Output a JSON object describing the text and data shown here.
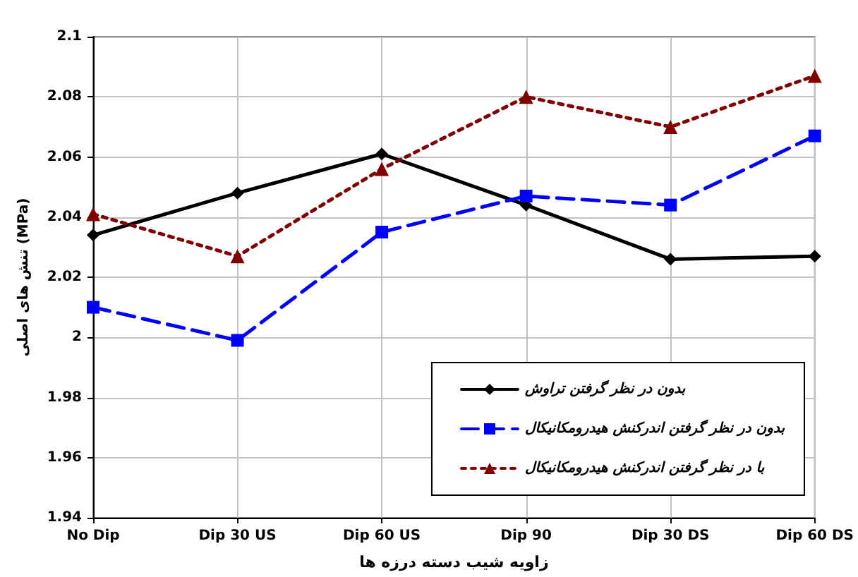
{
  "chart_data": {
    "type": "line",
    "xlabel": "زاویه شیب دسته درزه ها",
    "ylabel": "تنش های اصلی (MPa)",
    "categories": [
      "No Dip",
      "Dip 30 US",
      "Dip 60 US",
      "Dip 90",
      "Dip 30 DS",
      "Dip 60 DS"
    ],
    "ylim": [
      1.94,
      2.1
    ],
    "yticks": [
      1.94,
      1.96,
      1.98,
      2,
      2.02,
      2.04,
      2.06,
      2.08,
      2.1
    ],
    "grid": true,
    "legend": "bottom right",
    "series": [
      {
        "name": "بدون در نظر گرفتن تراوش",
        "color": "#000000",
        "marker": "diamond",
        "line_style": "solid",
        "values": [
          2.034,
          2.048,
          2.061,
          2.044,
          2.026,
          2.027
        ]
      },
      {
        "name": "بدون در نظر گرفتن اندرکنش هیدرومکانیکال",
        "color": "#0000ff",
        "marker": "square",
        "line_style": "dashed",
        "values": [
          2.01,
          1.999,
          2.035,
          2.047,
          2.044,
          2.067
        ]
      },
      {
        "name": "با در نظر گرفتن اندرکنش هیدرومکانیکال",
        "color": "#800000",
        "marker": "triangle",
        "line_style": "dotted",
        "values": [
          2.041,
          2.027,
          2.056,
          2.08,
          2.07,
          2.087
        ]
      }
    ]
  }
}
